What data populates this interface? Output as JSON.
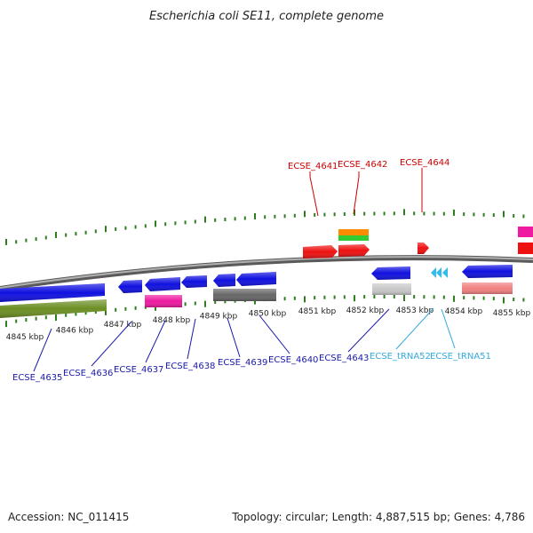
{
  "title": "Escherichia coli SE11, complete genome",
  "footer": {
    "accession": "Accession: NC_011415",
    "topology": "Topology: circular; Length: 4,887,515 bp; Genes: 4,786"
  },
  "scale": {
    "kbp_labels": [
      "4845 kbp",
      "4846 kbp",
      "4847 kbp",
      "4848 kbp",
      "4849 kbp",
      "4850 kbp",
      "4851 kbp",
      "4852 kbp",
      "4853 kbp",
      "4854 kbp",
      "4855 kbp"
    ]
  },
  "colors": {
    "backbone": "#8a8a8a",
    "tick": "#2e7d1f",
    "blue_gene": "#1010e0",
    "red_gene": "#ee1111",
    "olive": "#6b8e23",
    "magenta": "#ee1aa0",
    "dark_gray": "#666666",
    "light_gray": "#c8c8c8",
    "salmon": "#f08080",
    "orange": "#ff8c00",
    "green": "#33cc33",
    "cyan": "#33bbee",
    "label_blue": "#1a1aaa",
    "label_red": "#cc0000",
    "label_cyan": "#33aadd"
  },
  "labels": {
    "top": [
      "ECSE_4641",
      "ECSE_4642",
      "ECSE_4644"
    ],
    "bottom": [
      "ECSE_4635",
      "ECSE_4636",
      "ECSE_4637",
      "ECSE_4638",
      "ECSE_4639",
      "ECSE_4640",
      "ECSE_4643"
    ],
    "trna": [
      "ECSE_tRNA52",
      "ECSE_tRNA51"
    ]
  }
}
